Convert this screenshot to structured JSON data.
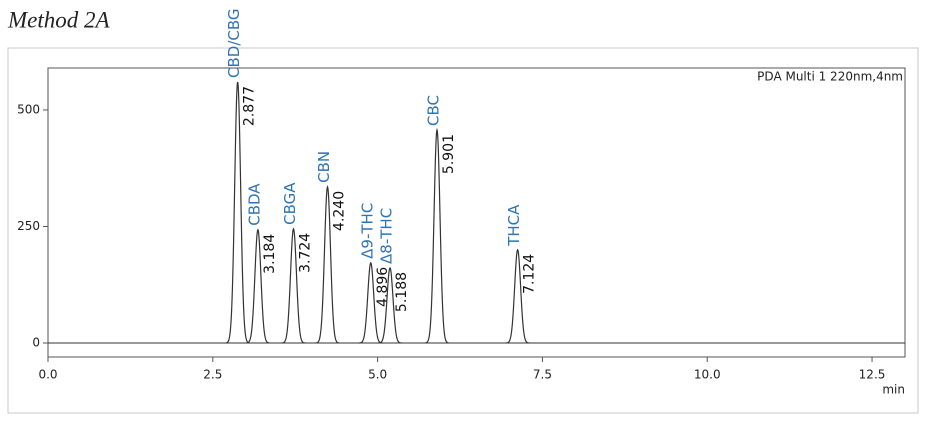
{
  "chart_data": {
    "type": "line",
    "title": "Method 2A",
    "annotation": "PDA Multi 1 220nm,4nm",
    "xlabel": "min",
    "xlim": [
      0,
      13.0
    ],
    "ylim": [
      -30,
      590
    ],
    "xticks": [
      {
        "value": 0,
        "label": "0.0"
      },
      2.5,
      {
        "value": 5,
        "label": "5.0"
      },
      7.5,
      {
        "value": 10,
        "label": "10.0"
      },
      12.5
    ],
    "yticks": [
      0,
      250,
      500
    ],
    "peak_names": [
      "CBD/CBG",
      "CBDA",
      "CBGA",
      "CBN",
      "Δ9-THC",
      "Δ8-THC",
      "CBC",
      "THCA"
    ],
    "x": [
      2.877,
      3.184,
      3.724,
      4.24,
      4.896,
      5.188,
      5.901,
      7.124
    ],
    "x_labels": [
      "2.877",
      "3.184",
      "3.724",
      "4.240",
      "4.896",
      "5.188",
      "5.901",
      "7.124"
    ],
    "values": [
      560,
      243,
      245,
      335,
      172,
      161,
      457,
      200
    ],
    "color": "#333333",
    "name_color": "#2e74b5"
  }
}
